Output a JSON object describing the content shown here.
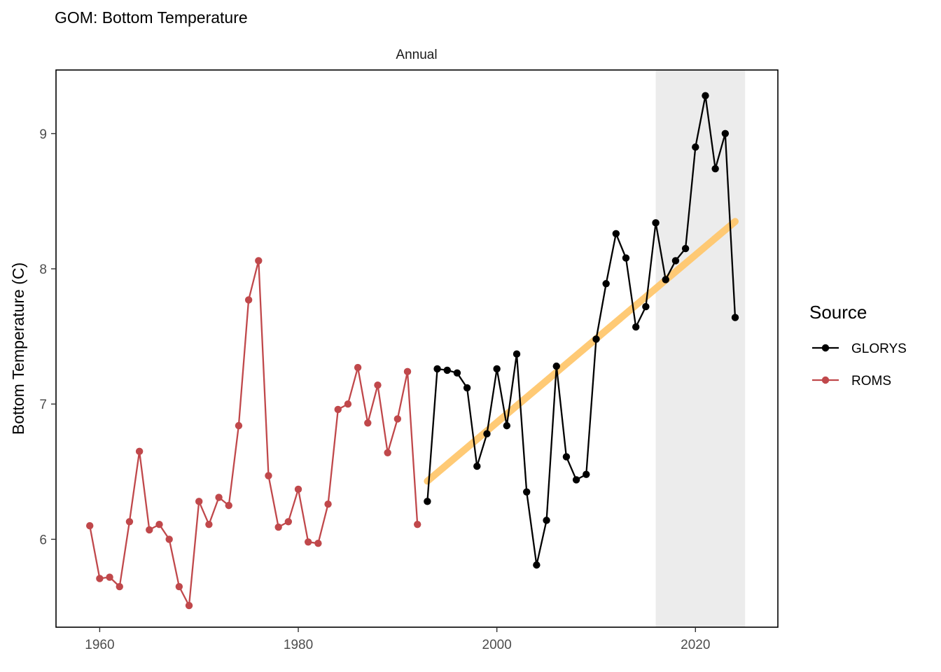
{
  "chart_data": {
    "type": "line",
    "title": "GOM: Bottom Temperature",
    "facet_label": "Annual",
    "xlabel": "",
    "ylabel": "Bottom Temperature (C)",
    "xlim": [
      1955.6,
      2028.3
    ],
    "ylim": [
      5.35,
      9.47
    ],
    "x_ticks": [
      1960,
      1980,
      2000,
      2020
    ],
    "y_ticks": [
      6,
      7,
      8,
      9
    ],
    "grid": false,
    "legend_title": "Source",
    "legend_position": "right",
    "highlight_band": {
      "x_start": 2016,
      "x_end": 2025,
      "color": "#ececec"
    },
    "trend": {
      "x": [
        1993,
        2024
      ],
      "y": [
        6.43,
        8.35
      ],
      "color": "#ffc86e"
    },
    "series": [
      {
        "name": "GLORYS",
        "color": "#000000",
        "x": [
          1993,
          1994,
          1995,
          1996,
          1997,
          1998,
          1999,
          2000,
          2001,
          2002,
          2003,
          2004,
          2005,
          2006,
          2007,
          2008,
          2009,
          2010,
          2011,
          2012,
          2013,
          2014,
          2015,
          2016,
          2017,
          2018,
          2019,
          2020,
          2021,
          2022,
          2023,
          2024
        ],
        "y": [
          6.28,
          7.26,
          7.25,
          7.23,
          7.12,
          6.54,
          6.78,
          7.26,
          6.84,
          7.37,
          6.35,
          5.81,
          6.14,
          7.28,
          6.61,
          6.44,
          6.48,
          7.48,
          7.89,
          8.26,
          8.08,
          7.57,
          7.72,
          8.34,
          7.92,
          8.06,
          8.15,
          8.9,
          9.28,
          8.74,
          9.0,
          7.64
        ]
      },
      {
        "name": "ROMS",
        "color": "#c0484b",
        "x": [
          1959,
          1960,
          1961,
          1962,
          1963,
          1964,
          1965,
          1966,
          1967,
          1968,
          1969,
          1970,
          1971,
          1972,
          1973,
          1974,
          1975,
          1976,
          1977,
          1978,
          1979,
          1980,
          1981,
          1982,
          1983,
          1984,
          1985,
          1986,
          1987,
          1988,
          1989,
          1990,
          1991,
          1992
        ],
        "y": [
          6.1,
          5.71,
          5.72,
          5.65,
          6.13,
          6.65,
          6.07,
          6.11,
          6.0,
          5.65,
          5.51,
          6.28,
          6.11,
          6.31,
          6.25,
          6.84,
          7.77,
          8.06,
          6.47,
          6.09,
          6.13,
          6.37,
          5.98,
          5.97,
          6.26,
          6.96,
          7.0,
          7.27,
          6.86,
          7.14,
          6.64,
          6.89,
          7.24,
          6.11
        ]
      }
    ]
  }
}
